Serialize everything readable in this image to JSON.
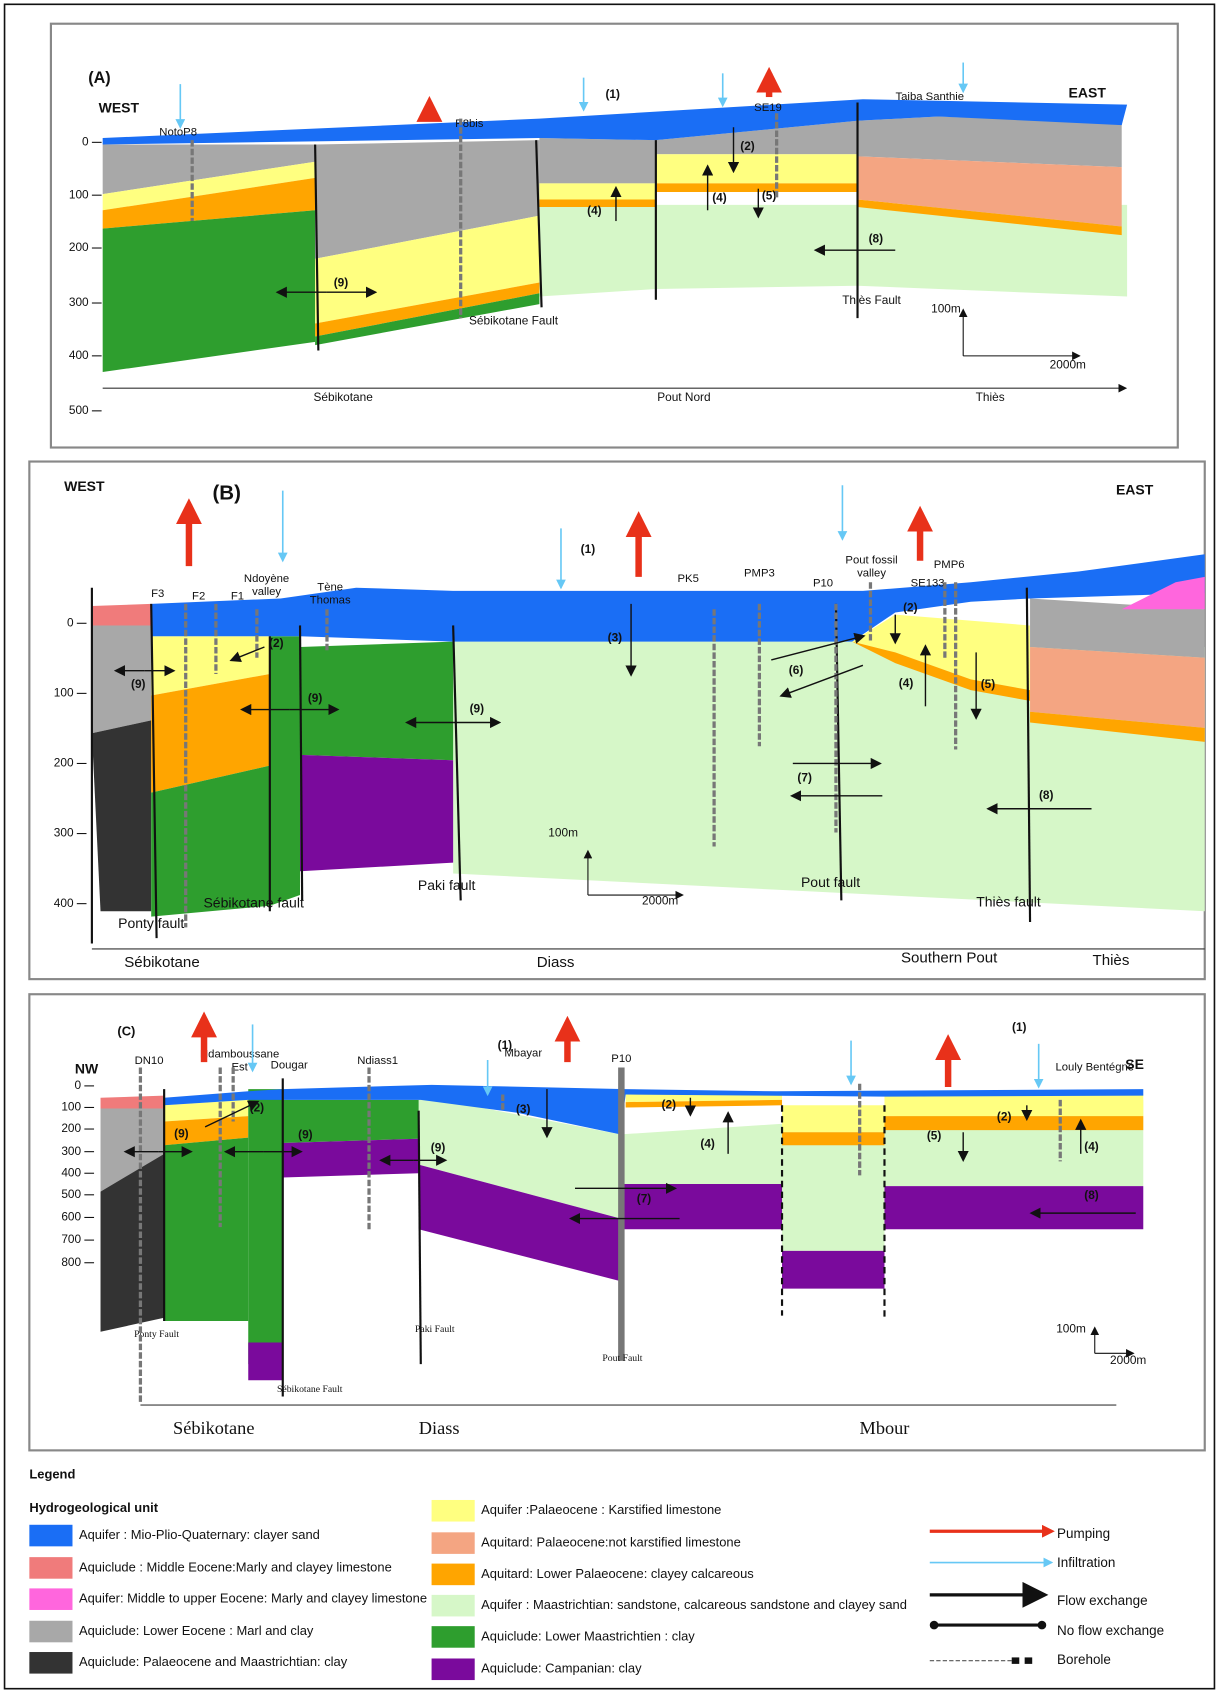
{
  "panels": [
    {
      "label": "(A)",
      "west": "WEST",
      "east": "EAST",
      "depths": [
        0,
        100,
        200,
        300,
        400,
        500
      ],
      "wells": [
        [
          "NotoP8"
        ],
        [
          "P8bis"
        ],
        [
          "SE19"
        ],
        [
          "Taiba Santhie"
        ]
      ],
      "flow_labels": [
        "(1)",
        "(2)",
        "(4)",
        "(4)",
        "(5)",
        "(8)",
        "(9)"
      ],
      "faults": [
        "Sébikotane Fault",
        "Thiès Fault"
      ],
      "scale": [
        "100m",
        "2000m"
      ],
      "zones": [
        "Sébikotane",
        "Pout Nord",
        "Thiès"
      ]
    },
    {
      "label": "(B)",
      "west": "WEST",
      "east": "EAST",
      "depths": [
        0,
        100,
        200,
        300,
        400
      ],
      "wells": [
        [
          "F3"
        ],
        [
          "F2"
        ],
        [
          "F1"
        ],
        [
          "Ndoyène",
          "valley"
        ],
        [
          "Tène",
          "Thomas"
        ],
        [
          "PK5"
        ],
        [
          "PMP3"
        ],
        [
          "P10"
        ],
        [
          "Pout fossil",
          "valley"
        ],
        [
          "SE133"
        ],
        [
          "PMP6"
        ]
      ],
      "flow_labels": [
        "(1)",
        "(2)",
        "(2)",
        "(3)",
        "(4)",
        "(5)",
        "(6)",
        "(7)",
        "(8)",
        "(9)",
        "(9)",
        "(9)"
      ],
      "faults": [
        "Ponty fault",
        "Sébikotane fault",
        "Paki fault",
        "Pout fault",
        "Thiès fault"
      ],
      "scale": [
        "100m",
        "2000m"
      ],
      "zones": [
        "Sébikotane",
        "Diass",
        "Southern Pout",
        "Thiès"
      ]
    },
    {
      "label": "(C)",
      "west": "NW",
      "east": "SE",
      "depths": [
        0,
        100,
        200,
        300,
        400,
        500,
        600,
        700,
        800
      ],
      "wells": [
        [
          "DN10"
        ],
        [
          "Ndamboussane",
          "Est"
        ],
        [
          "Dougar"
        ],
        [
          "Ndiass1"
        ],
        [
          "Mbayar"
        ],
        [
          "P10"
        ],
        [
          "Louly Bentégné"
        ]
      ],
      "flow_labels": [
        "(1)",
        "(1)",
        "(2)",
        "(2)",
        "(2)",
        "(3)",
        "(4)",
        "(4)",
        "(5)",
        "(7)",
        "(8)",
        "(9)",
        "(9)",
        "(9)"
      ],
      "faults": [
        "Ponty Fault",
        "Sébikotane Fault",
        "Paki Fault",
        "Pout Fault"
      ],
      "scale": [
        "100m",
        "2000m"
      ],
      "zones": [
        "Sébikotane",
        "Diass",
        "Mbour"
      ]
    }
  ],
  "legend": {
    "title": "Legend",
    "subtitle": "Hydrogeological unit",
    "units": [
      {
        "label": "Aquifer : Mio-Plio-Quaternary: clayer sand",
        "color": "#1a6ef5"
      },
      {
        "label": "Aquiclude : Middle Eocene:Marly and clayey limestone",
        "color": "#f07b7b"
      },
      {
        "label": "Aquifer: Middle to upper Eocene: Marly and clayey limestone",
        "color": "#ff66dd"
      },
      {
        "label": "Aquiclude: Lower Eocene : Marl and clay",
        "color": "#a8a8a8"
      },
      {
        "label": "Aquiclude: Palaeocene and Maastrichtian: clay",
        "color": "#333333"
      },
      {
        "label": "Aquifer :Palaeocene : Karstified limestone",
        "color": "#ffff80"
      },
      {
        "label": "Aquitard: Palaeocene:not karstified limestone",
        "color": "#f4a582"
      },
      {
        "label": "Aquitard: Lower Palaeocene: clayey calcareous",
        "color": "#ffa500"
      },
      {
        "label": "Aquifer : Maastrichtian: sandstone, calcareous sandstone and clayey sand",
        "color": "#d6f7c8"
      },
      {
        "label": "Aquiclude: Lower Maastrichtien : clay",
        "color": "#2e9e2e"
      },
      {
        "label": "Aquiclude: Campanian: clay",
        "color": "#7a0a9c"
      }
    ],
    "symbols": [
      "Pumping",
      "Infiltration",
      "Flow exchange",
      "No flow exchange",
      "Borehole"
    ]
  }
}
